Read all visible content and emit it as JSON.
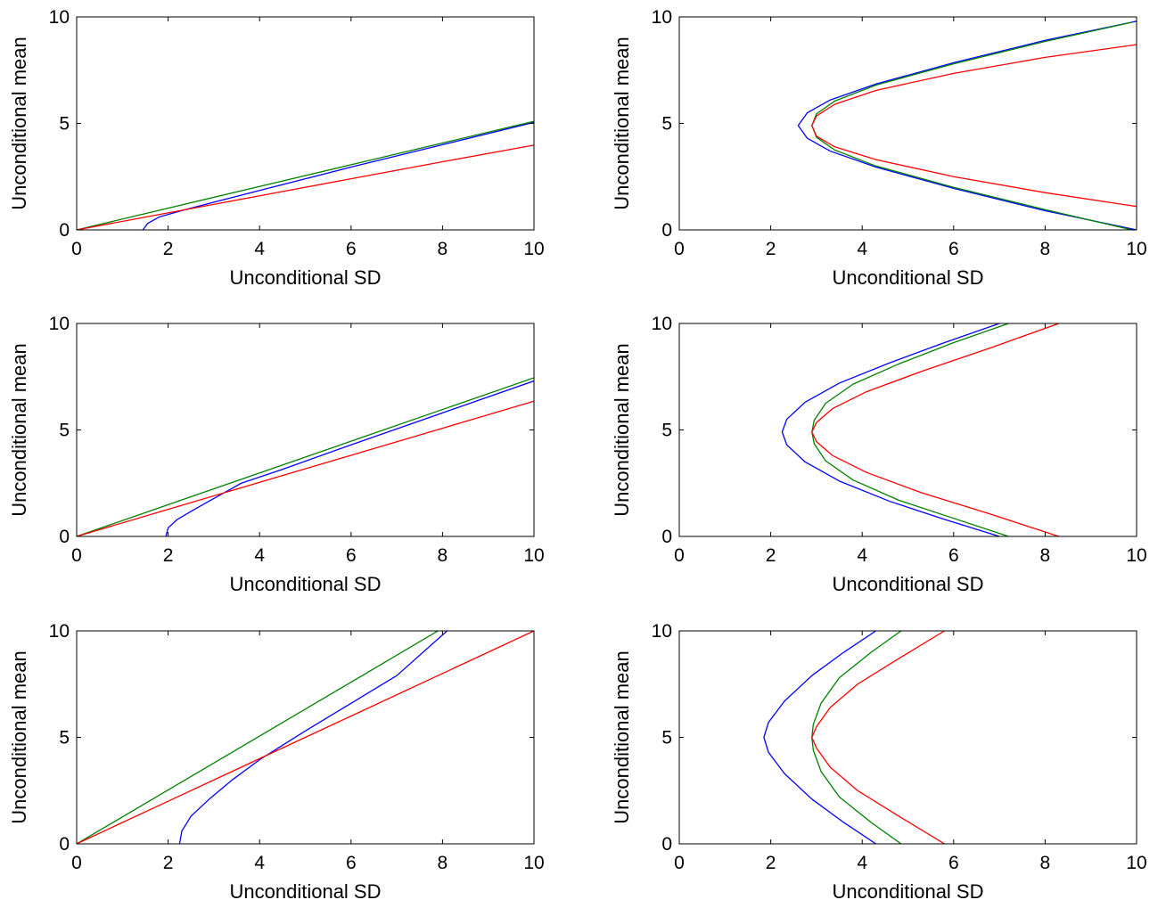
{
  "chart_data": [
    {
      "type": "line",
      "xlabel": "Unconditional SD",
      "ylabel": "Unconditional mean",
      "xlim": [
        0,
        10
      ],
      "ylim": [
        0,
        10
      ],
      "xticks": [
        0,
        2,
        4,
        6,
        8,
        10
      ],
      "yticks": [
        0,
        5,
        10
      ],
      "grid": false,
      "series": [
        {
          "color": "#0000ff",
          "x": [
            1.45,
            1.55,
            1.8,
            2.2,
            3,
            4,
            6,
            8,
            10
          ],
          "y": [
            0.0,
            0.3,
            0.6,
            0.85,
            1.3,
            1.85,
            2.95,
            4.0,
            5.05
          ]
        },
        {
          "color": "#008000",
          "x": [
            0,
            2,
            4,
            6,
            8,
            10
          ],
          "y": [
            0,
            1.02,
            2.04,
            3.06,
            4.08,
            5.1
          ]
        },
        {
          "color": "#ff0000",
          "x": [
            0,
            2,
            4,
            6,
            8,
            10
          ],
          "y": [
            0,
            0.8,
            1.6,
            2.4,
            3.2,
            3.98
          ]
        }
      ]
    },
    {
      "type": "line",
      "xlabel": "Unconditional SD",
      "ylabel": "Unconditional mean",
      "xlim": [
        0,
        10
      ],
      "ylim": [
        0,
        10
      ],
      "xticks": [
        0,
        2,
        4,
        6,
        8,
        10
      ],
      "yticks": [
        0,
        5,
        10
      ],
      "grid": false,
      "series": [
        {
          "color": "#0000ff",
          "x": [
            10.0,
            8.0,
            6.0,
            4.3,
            3.3,
            2.8,
            2.6,
            2.8,
            3.3,
            4.3,
            6.0,
            8.0,
            10.0
          ],
          "y": [
            0.0,
            0.9,
            1.95,
            2.95,
            3.7,
            4.3,
            4.9,
            5.5,
            6.1,
            6.85,
            7.85,
            8.9,
            9.8
          ]
        },
        {
          "color": "#008000",
          "x": [
            9.9,
            8.0,
            6.0,
            4.3,
            3.4,
            3.0,
            2.9,
            3.0,
            3.4,
            4.3,
            6.0,
            8.0,
            9.9
          ],
          "y": [
            0.0,
            0.95,
            2.0,
            3.0,
            3.75,
            4.35,
            4.9,
            5.45,
            6.05,
            6.8,
            7.8,
            8.85,
            9.75
          ]
        },
        {
          "color": "#ff0000",
          "x": [
            10.0,
            8.0,
            6.0,
            4.3,
            3.4,
            3.0,
            2.9,
            3.0,
            3.4,
            4.3,
            6.0,
            8.0,
            10.0
          ],
          "y": [
            1.1,
            1.75,
            2.5,
            3.3,
            3.9,
            4.4,
            4.9,
            5.35,
            5.9,
            6.55,
            7.35,
            8.1,
            8.7
          ]
        }
      ]
    },
    {
      "type": "line",
      "xlabel": "Unconditional SD",
      "ylabel": "Unconditional mean",
      "xlim": [
        0,
        10
      ],
      "ylim": [
        0,
        10
      ],
      "xticks": [
        0,
        2,
        4,
        6,
        8,
        10
      ],
      "yticks": [
        0,
        5,
        10
      ],
      "grid": false,
      "series": [
        {
          "color": "#0000ff",
          "x": [
            1.95,
            2.0,
            2.2,
            2.6,
            3.1,
            3.6,
            4.5,
            6.0,
            8.0,
            10.0
          ],
          "y": [
            0.0,
            0.4,
            0.8,
            1.3,
            1.9,
            2.5,
            3.15,
            4.3,
            5.8,
            7.3
          ]
        },
        {
          "color": "#008000",
          "x": [
            0,
            2,
            4,
            6,
            8,
            10
          ],
          "y": [
            0,
            1.49,
            2.98,
            4.47,
            5.96,
            7.45
          ]
        },
        {
          "color": "#ff0000",
          "x": [
            0,
            2,
            4,
            6,
            8,
            10
          ],
          "y": [
            0,
            1.27,
            2.54,
            3.81,
            5.08,
            6.35
          ]
        }
      ]
    },
    {
      "type": "line",
      "xlabel": "Unconditional SD",
      "ylabel": "Unconditional mean",
      "xlim": [
        0,
        10
      ],
      "ylim": [
        0,
        10
      ],
      "xticks": [
        0,
        2,
        4,
        6,
        8,
        10
      ],
      "yticks": [
        0,
        5,
        10
      ],
      "grid": false,
      "series": [
        {
          "color": "#0000ff",
          "x": [
            7.0,
            5.8,
            4.6,
            3.5,
            2.75,
            2.35,
            2.25,
            2.35,
            2.75,
            3.5,
            4.6,
            5.8,
            7.0
          ],
          "y": [
            0.0,
            0.8,
            1.65,
            2.6,
            3.5,
            4.3,
            4.9,
            5.5,
            6.3,
            7.2,
            8.15,
            9.1,
            10.0
          ]
        },
        {
          "color": "#008000",
          "x": [
            7.2,
            6.0,
            4.8,
            3.8,
            3.2,
            2.95,
            2.9,
            2.95,
            3.2,
            3.8,
            4.8,
            6.0,
            7.2
          ],
          "y": [
            0.0,
            0.85,
            1.7,
            2.65,
            3.55,
            4.35,
            4.9,
            5.45,
            6.25,
            7.15,
            8.1,
            9.1,
            10.0
          ]
        },
        {
          "color": "#ff0000",
          "x": [
            8.3,
            6.8,
            5.3,
            4.1,
            3.35,
            3.0,
            2.9,
            3.0,
            3.35,
            4.1,
            5.3,
            6.8,
            8.3
          ],
          "y": [
            0.0,
            1.05,
            2.05,
            3.0,
            3.8,
            4.45,
            4.9,
            5.35,
            6.0,
            6.8,
            7.75,
            8.85,
            10.0
          ]
        }
      ]
    },
    {
      "type": "line",
      "xlabel": "Unconditional SD",
      "ylabel": "Unconditional mean",
      "xlim": [
        0,
        10
      ],
      "ylim": [
        0,
        10
      ],
      "xticks": [
        0,
        2,
        4,
        6,
        8,
        10
      ],
      "yticks": [
        0,
        5,
        10
      ],
      "grid": false,
      "series": [
        {
          "color": "#0000ff",
          "x": [
            2.25,
            2.3,
            2.5,
            2.9,
            3.4,
            4.0,
            5.0,
            6.0,
            7.0,
            8.1
          ],
          "y": [
            0.0,
            0.6,
            1.3,
            2.1,
            3.0,
            3.95,
            5.3,
            6.6,
            7.9,
            10.0
          ]
        },
        {
          "color": "#008000",
          "x": [
            0,
            2,
            4,
            6,
            7.9
          ],
          "y": [
            0,
            2.53,
            5.06,
            7.59,
            10.0
          ]
        },
        {
          "color": "#ff0000",
          "x": [
            0,
            2,
            4,
            6,
            8,
            10
          ],
          "y": [
            0,
            2,
            4,
            6,
            8,
            10
          ]
        }
      ]
    },
    {
      "type": "line",
      "xlabel": "Unconditional SD",
      "ylabel": "Unconditional mean",
      "xlim": [
        0,
        10
      ],
      "ylim": [
        0,
        10
      ],
      "xticks": [
        0,
        2,
        4,
        6,
        8,
        10
      ],
      "yticks": [
        0,
        5,
        10
      ],
      "grid": false,
      "series": [
        {
          "color": "#0000ff",
          "x": [
            4.3,
            3.6,
            2.9,
            2.3,
            1.95,
            1.85,
            1.95,
            2.3,
            2.9,
            3.6,
            4.3
          ],
          "y": [
            0.0,
            1.0,
            2.1,
            3.3,
            4.3,
            5.0,
            5.7,
            6.7,
            7.9,
            9.0,
            10.0
          ]
        },
        {
          "color": "#008000",
          "x": [
            4.85,
            4.2,
            3.5,
            3.1,
            2.93,
            2.9,
            2.93,
            3.1,
            3.5,
            4.2,
            4.85
          ],
          "y": [
            0.0,
            1.0,
            2.2,
            3.4,
            4.4,
            5.0,
            5.6,
            6.6,
            7.8,
            9.0,
            10.0
          ]
        },
        {
          "color": "#ff0000",
          "x": [
            5.8,
            4.8,
            3.9,
            3.3,
            3.0,
            2.9,
            3.0,
            3.3,
            3.9,
            4.8,
            5.8
          ],
          "y": [
            0.0,
            1.3,
            2.5,
            3.6,
            4.5,
            5.0,
            5.5,
            6.4,
            7.5,
            8.7,
            10.0
          ]
        }
      ]
    }
  ]
}
